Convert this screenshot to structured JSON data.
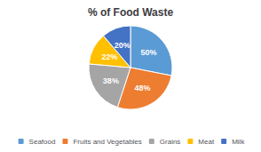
{
  "chart_data": {
    "type": "pie",
    "title": "% of Food Waste",
    "categories": [
      "Seafood",
      "Fruits and Vegetables",
      "Grains",
      "Meat",
      "Milk"
    ],
    "values": [
      50,
      48,
      38,
      22,
      20
    ],
    "value_labels": [
      "50%",
      "48%",
      "38%",
      "22%",
      "20%"
    ],
    "colors": [
      "#5B9BD5",
      "#ED7D31",
      "#A5A5A5",
      "#FFC000",
      "#4472C4"
    ],
    "data_labels": true,
    "legend": "bottom"
  }
}
